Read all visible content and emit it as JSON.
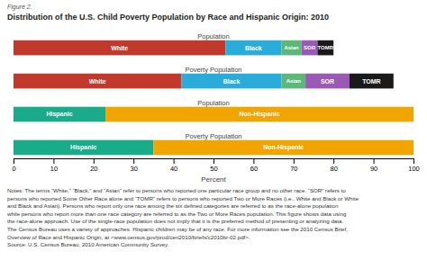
{
  "chart_data": {
    "type": "bar",
    "orientation": "horizontal",
    "stacked": true,
    "subtitle": "Figure 2.",
    "title": "Distribution of the U.S. Child Poverty Population by Race and Hispanic Origin: 2010",
    "categories": [
      "Population",
      "Poverty Population",
      "Population",
      "Poverty Population"
    ],
    "series": [
      {
        "name": "White",
        "color": "#c0392b",
        "values": [
          53,
          42,
          null,
          null
        ]
      },
      {
        "name": "Black",
        "color": "#29acd9",
        "values": [
          14,
          25,
          null,
          null
        ]
      },
      {
        "name": "Asian",
        "color": "#5cb87a",
        "values": [
          5,
          6,
          null,
          null
        ]
      },
      {
        "name": "SOR",
        "color": "#9b59b6",
        "values": [
          4,
          11,
          null,
          null
        ]
      },
      {
        "name": "TOMR",
        "color": "#1a1a1a",
        "values": [
          4,
          11,
          null,
          null
        ]
      },
      {
        "name": "Hispanic",
        "color": "#1aab8a",
        "values": [
          null,
          null,
          23,
          35
        ]
      },
      {
        "name": "Non-Hispanic",
        "color": "#f0a500",
        "values": [
          null,
          null,
          77,
          65
        ]
      }
    ],
    "xlabel": "Percent",
    "xlim": [
      0,
      100
    ],
    "xticks": [
      0,
      10,
      20,
      30,
      40,
      50,
      60,
      70,
      80,
      90,
      100
    ],
    "grid": false,
    "tick_labels": "x",
    "annotations": [
      "Notes: The terms “White,” “Black,” and “Asian” refer to persons who reported one particular race group and no other race. “SOR” refers to",
      "persons who reported Some Other Race alone and “TOMR” refers to persons who reported Two or More Races (i.e., White and Black or White",
      "and Black and Asian). Persons who report only one race among the six defined categories are referred to as the race-alone population",
      "while persons who report more than one race category are referred to as the Two or More Races population. This figure shows data using",
      "the race-alone approach. Use of the single-race population does not imply that it is the preferred method of presenting or analyzing data.",
      "The Census Bureau uses a variety of approaches. Hispanic children may be of any race. For more information see the 2010 Census Brief,",
      "Overview of Race and Hispanic Origin, at <www.census.gov/prod/cen2010/briefs/c2010br-02.pdf>.",
      "Source: U.S. Census Bureau, 2010 American Community Survey."
    ]
  }
}
